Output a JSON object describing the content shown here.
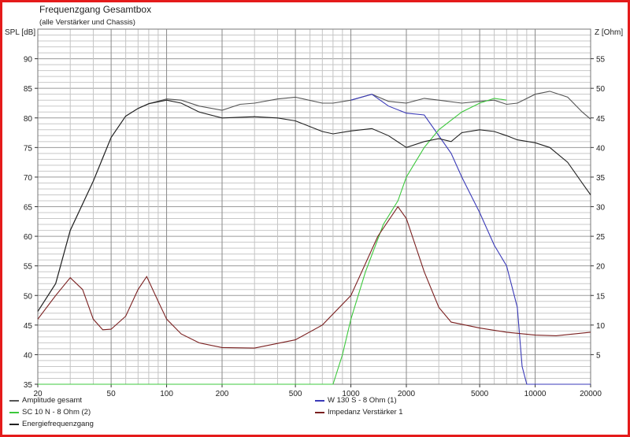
{
  "title": "Frequenzgang Gesamtbox",
  "subtitle": "(alle Verstärker und Chassis)",
  "chart_data": {
    "type": "line",
    "title": "Frequenzgang Gesamtbox",
    "subtitle": "(alle Verstärker und Chassis)",
    "xlabel": "",
    "ylabel": "SPL [dB]",
    "y2label": "Z [Ohm]",
    "xscale": "log",
    "xlim": [
      20,
      20000
    ],
    "ylim": [
      35,
      95
    ],
    "y2lim": [
      0,
      60
    ],
    "grid": true,
    "xticks": [
      "20",
      "50",
      "100",
      "200",
      "500",
      "1000",
      "2000",
      "5000",
      "10000",
      "20000"
    ],
    "yticks": [
      "35",
      "40",
      "45",
      "50",
      "55",
      "60",
      "65",
      "70",
      "75",
      "80",
      "85",
      "90"
    ],
    "y2ticks": [
      "5",
      "10",
      "15",
      "20",
      "25",
      "30",
      "35",
      "40",
      "45",
      "50",
      "55"
    ],
    "series": [
      {
        "name": "Amplitude gesamt",
        "color": "#555555",
        "axis": "left",
        "x": [
          20,
          25,
          30,
          40,
          50,
          60,
          70,
          80,
          100,
          120,
          150,
          200,
          250,
          300,
          400,
          500,
          700,
          800,
          1000,
          1300,
          1600,
          2000,
          2500,
          3000,
          4000,
          5000,
          6000,
          7000,
          8000,
          10000,
          12000,
          15000,
          18000,
          20000
        ],
        "y": [
          47.3,
          52,
          61,
          69.3,
          76.7,
          80.3,
          81.6,
          82.4,
          83.2,
          83,
          82,
          81.3,
          82.3,
          82.5,
          83.2,
          83.5,
          82.5,
          82.5,
          83,
          84,
          82.8,
          82.5,
          83.3,
          83,
          82.5,
          82.8,
          83,
          82.3,
          82.5,
          84,
          84.5,
          83.5,
          81,
          79.8
        ]
      },
      {
        "name": "W 130 S - 8 Ohm (1)",
        "color": "#3a3ab8",
        "axis": "left",
        "x": [
          1000,
          1300,
          1600,
          2000,
          2500,
          3000,
          3500,
          4000,
          5000,
          6000,
          7000,
          8000,
          8500,
          9000,
          20000
        ],
        "y": [
          83,
          84,
          82,
          80.8,
          80.5,
          77,
          74,
          70,
          64,
          58.5,
          55,
          48,
          38,
          35,
          35
        ]
      },
      {
        "name": "SC 10 N - 8 Ohm (2)",
        "color": "#3cc83c",
        "axis": "left",
        "x": [
          20,
          800,
          900,
          1000,
          1200,
          1500,
          1800,
          2000,
          2500,
          3000,
          4000,
          5000,
          6000,
          7000
        ],
        "y": [
          35,
          35,
          40,
          46,
          54,
          62,
          66,
          70,
          75,
          78,
          81,
          82.5,
          83.3,
          83
        ]
      },
      {
        "name": "Impedanz Verstärker 1",
        "color": "#7a1f1f",
        "axis": "right",
        "x": [
          20,
          25,
          30,
          35,
          40,
          45,
          50,
          60,
          70,
          78,
          90,
          100,
          120,
          150,
          200,
          300,
          500,
          700,
          1000,
          1400,
          1800,
          2000,
          2500,
          3000,
          3500,
          5000,
          7000,
          10000,
          13000,
          20000
        ],
        "y": [
          11,
          15,
          18,
          16,
          11,
          9.2,
          9.3,
          11.5,
          16,
          18.2,
          14,
          11,
          8.5,
          7,
          6.2,
          6.1,
          7.5,
          10,
          15,
          25,
          30,
          28,
          19,
          13,
          10.5,
          9.5,
          8.8,
          8.3,
          8.2,
          8.8
        ]
      },
      {
        "name": "Energiefrequenzgang",
        "color": "#222222",
        "axis": "left",
        "x": [
          20,
          25,
          30,
          40,
          50,
          60,
          70,
          80,
          100,
          120,
          150,
          200,
          300,
          400,
          500,
          700,
          800,
          1000,
          1300,
          1600,
          2000,
          2500,
          3000,
          3500,
          4000,
          5000,
          6000,
          7000,
          8000,
          10000,
          12000,
          15000,
          18000,
          20000
        ],
        "y": [
          47.3,
          52,
          61,
          69.3,
          76.7,
          80.3,
          81.6,
          82.4,
          83,
          82.5,
          81,
          80,
          80.2,
          80,
          79.5,
          77.7,
          77.3,
          77.8,
          78.2,
          77,
          75,
          76,
          76.5,
          76,
          77.5,
          78,
          77.7,
          77,
          76.3,
          75.8,
          75,
          72.5,
          69,
          67
        ]
      }
    ]
  }
}
